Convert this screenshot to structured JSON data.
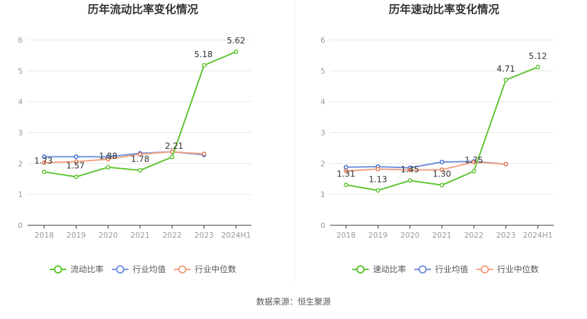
{
  "colors": {
    "series1": "#5cc42e",
    "series2": "#6f90dc",
    "series3": "#f2a07f",
    "avgDot": "#3a6fd8",
    "medDot": "#e8744e",
    "axis": "#333333",
    "grid": "#e6e6e6",
    "tick": "#999999"
  },
  "source": "数据来源：恒生聚源",
  "chart_data": [
    {
      "type": "line",
      "title": "历年流动比率变化情况",
      "categories": [
        "2018",
        "2019",
        "2020",
        "2021",
        "2022",
        "2023",
        "2024H1"
      ],
      "yticks": [
        "0",
        "1",
        "2",
        "3",
        "4",
        "5",
        "6"
      ],
      "ylim": [
        0,
        6
      ],
      "grid": true,
      "legend": "bottom",
      "series": [
        {
          "name": "流动比率",
          "values": [
            1.73,
            1.57,
            1.88,
            1.78,
            2.21,
            5.18,
            5.62
          ],
          "labels": [
            "1.73",
            "1.57",
            "1.88",
            "1.78",
            "2.21",
            "5.18",
            "5.62"
          ]
        },
        {
          "name": "行业均值",
          "values": [
            2.22,
            2.22,
            2.22,
            2.33,
            2.38,
            2.28,
            null
          ]
        },
        {
          "name": "行业中位数",
          "values": [
            2.03,
            2.06,
            2.14,
            2.3,
            2.38,
            2.31,
            null
          ]
        }
      ]
    },
    {
      "type": "line",
      "title": "历年速动比率变化情况",
      "categories": [
        "2018",
        "2019",
        "2020",
        "2021",
        "2022",
        "2023",
        "2024H1"
      ],
      "yticks": [
        "0",
        "1",
        "2",
        "3",
        "4",
        "5",
        "6"
      ],
      "ylim": [
        0,
        6
      ],
      "grid": true,
      "legend": "bottom",
      "series": [
        {
          "name": "速动比率",
          "values": [
            1.31,
            1.13,
            1.45,
            1.3,
            1.75,
            4.71,
            5.12
          ],
          "labels": [
            "1.31",
            "1.13",
            "1.45",
            "1.30",
            "1.75",
            "4.71",
            "5.12"
          ]
        },
        {
          "name": "行业均值",
          "values": [
            1.88,
            1.9,
            1.86,
            2.05,
            2.07,
            1.98,
            null
          ]
        },
        {
          "name": "行业中位数",
          "values": [
            1.76,
            1.82,
            1.79,
            1.8,
            2.05,
            1.98,
            null
          ]
        }
      ]
    }
  ]
}
